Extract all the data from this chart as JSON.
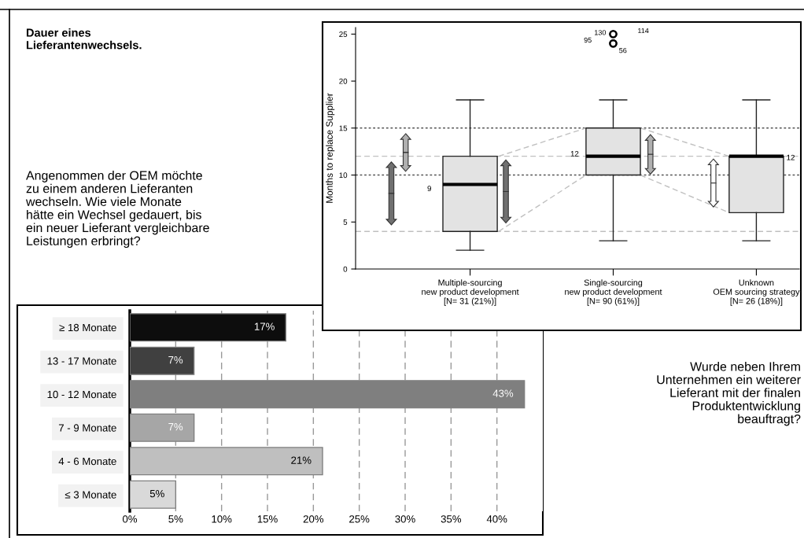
{
  "chart_data": [
    {
      "type": "bar",
      "orientation": "horizontal",
      "title": "Dauer eines\nLieferantenwechsels.",
      "annotations": [
        "Angenommen der OEM möchte\nzu einem anderen Lieferanten\nwechseln. Wie viele Monate\nhätte ein Wechsel gedauert, bis\nein neuer Lieferant vergleichbare\nLeistungen erbringt?"
      ],
      "categories": [
        "≥ 18 Monate",
        "13 - 17 Monate",
        "10 - 12 Monate",
        "7 - 9 Monate",
        "4 - 6 Monate",
        "≤ 3 Monate"
      ],
      "values": [
        17,
        7,
        43,
        7,
        21,
        5
      ],
      "colors": [
        "#0d0d0d",
        "#404040",
        "#7f7f7f",
        "#a6a6a6",
        "#bfbfbf",
        "#d9d9d9"
      ],
      "value_labels": [
        "17%",
        "7%",
        "43%",
        "7%",
        "21%",
        "5%"
      ],
      "xlim": [
        0,
        45
      ],
      "xticks": [
        {
          "value": 0,
          "label": "0%"
        },
        {
          "value": 5,
          "label": "5%"
        },
        {
          "value": 10,
          "label": "10%"
        },
        {
          "value": 15,
          "label": "15%"
        },
        {
          "value": 20,
          "label": "20%"
        },
        {
          "value": 25,
          "label": "25%"
        },
        {
          "value": 30,
          "label": "30%"
        },
        {
          "value": 35,
          "label": "35%"
        },
        {
          "value": 40,
          "label": "40%"
        }
      ],
      "grid": "x"
    },
    {
      "type": "box",
      "ylabel": "Months to replace Supplier",
      "categories": [
        "Multiple-sourcing\nnew product development\n[N= 31 (21%)]",
        "Single-sourcing\nnew product development\n[N= 90 (61%)]",
        "Unknown\nOEM sourcing strategy\n[N= 26 (18%)]"
      ],
      "boxes": [
        {
          "low": 2,
          "q1": 4,
          "median": 9,
          "q3": 12,
          "high": 18
        },
        {
          "low": 3,
          "q1": 10,
          "median": 12,
          "q3": 15,
          "high": 18,
          "outliers": [
            25,
            25,
            24,
            24
          ]
        },
        {
          "low": 3,
          "q1": 6,
          "median": 12,
          "q3": 12,
          "high": 18
        }
      ],
      "color": "#e3e3e3",
      "ylim": [
        0,
        25.7
      ],
      "yticks": [
        0,
        5,
        10,
        15,
        20,
        25
      ],
      "ref_lines": [
        {
          "axis": "y",
          "value": 15,
          "color": "#555555",
          "line_style": "dotted"
        },
        {
          "axis": "y",
          "value": 12,
          "color": "#c0c0c0",
          "line_style": "dashed"
        },
        {
          "axis": "y",
          "value": 10,
          "color": "#555555",
          "line_style": "dotted"
        },
        {
          "axis": "y",
          "value": 4,
          "color": "#c0c0c0",
          "line_style": "dashed"
        }
      ],
      "annotations": [
        "9",
        "12",
        "12",
        "130",
        "114",
        "95",
        "56",
        "Wurde neben Ihrem\nUnternehmen ein weiterer\nLieferant mit der finalen\nProduktentwicklung\nbeauftragt?"
      ]
    }
  ]
}
